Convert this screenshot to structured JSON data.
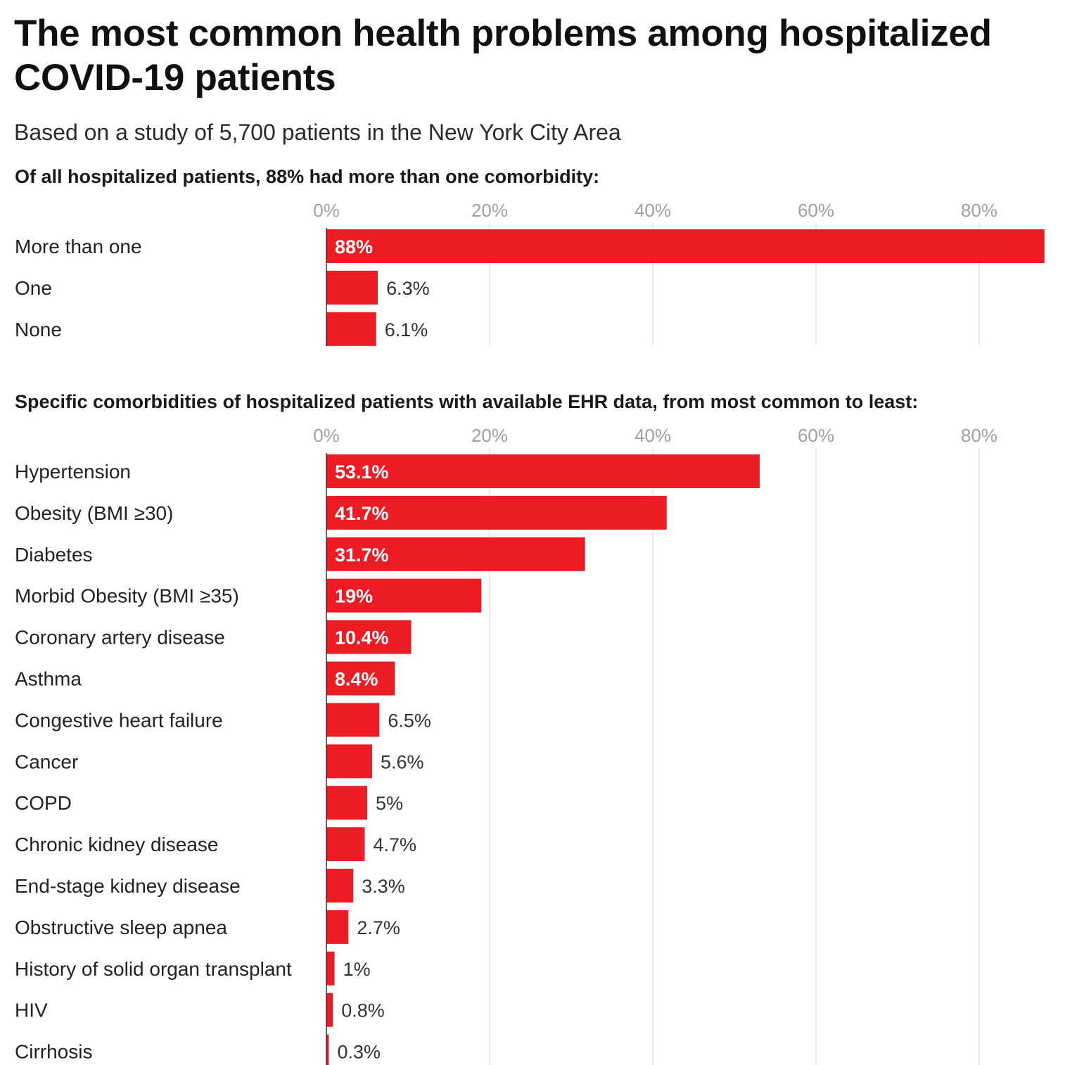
{
  "title": "The most common health problems among hospitalized COVID-19 patients",
  "subtitle": "Based on a study of 5,700 patients in the New York City Area",
  "colors": {
    "bar": "#ed1c24",
    "grid": "#e6e6e6",
    "tick": "#a0a0a0",
    "label": "#222222",
    "inside_label": "#ffffff",
    "outside_label": "#333333"
  },
  "chart_data": [
    {
      "type": "bar",
      "orientation": "horizontal",
      "title": "Of all hospitalized patients, 88% had more than one comorbidity:",
      "categories": [
        "More than one",
        "One",
        "None"
      ],
      "values": [
        88,
        6.3,
        6.1
      ],
      "value_labels": [
        "88%",
        "6.3%",
        "6.1%"
      ],
      "x_ticks": [
        0,
        20,
        40,
        60,
        80
      ],
      "x_tick_labels": [
        "0%",
        "20%",
        "40%",
        "60%",
        "80%"
      ],
      "xlim": [
        0,
        88
      ],
      "grid": true
    },
    {
      "type": "bar",
      "orientation": "horizontal",
      "title": "Specific comorbidities of hospitalized patients with available EHR data, from most common to least:",
      "categories": [
        "Hypertension",
        "Obesity (BMI ≥30)",
        "Diabetes",
        "Morbid Obesity (BMI ≥35)",
        "Coronary artery disease",
        "Asthma",
        "Congestive heart failure",
        "Cancer",
        "COPD",
        "Chronic kidney disease",
        "End-stage kidney disease",
        "Obstructive sleep apnea",
        "History of solid organ transplant",
        "HIV",
        "Cirrhosis"
      ],
      "values": [
        53.1,
        41.7,
        31.7,
        19,
        10.4,
        8.4,
        6.5,
        5.6,
        5,
        4.7,
        3.3,
        2.7,
        1,
        0.8,
        0.3
      ],
      "value_labels": [
        "53.1%",
        "41.7%",
        "31.7%",
        "19%",
        "10.4%",
        "8.4%",
        "6.5%",
        "5.6%",
        "5%",
        "4.7%",
        "3.3%",
        "2.7%",
        "1%",
        "0.8%",
        "0.3%"
      ],
      "x_ticks": [
        0,
        20,
        40,
        60,
        80
      ],
      "x_tick_labels": [
        "0%",
        "20%",
        "40%",
        "60%",
        "80%"
      ],
      "xlim": [
        0,
        88
      ],
      "grid": true
    }
  ]
}
